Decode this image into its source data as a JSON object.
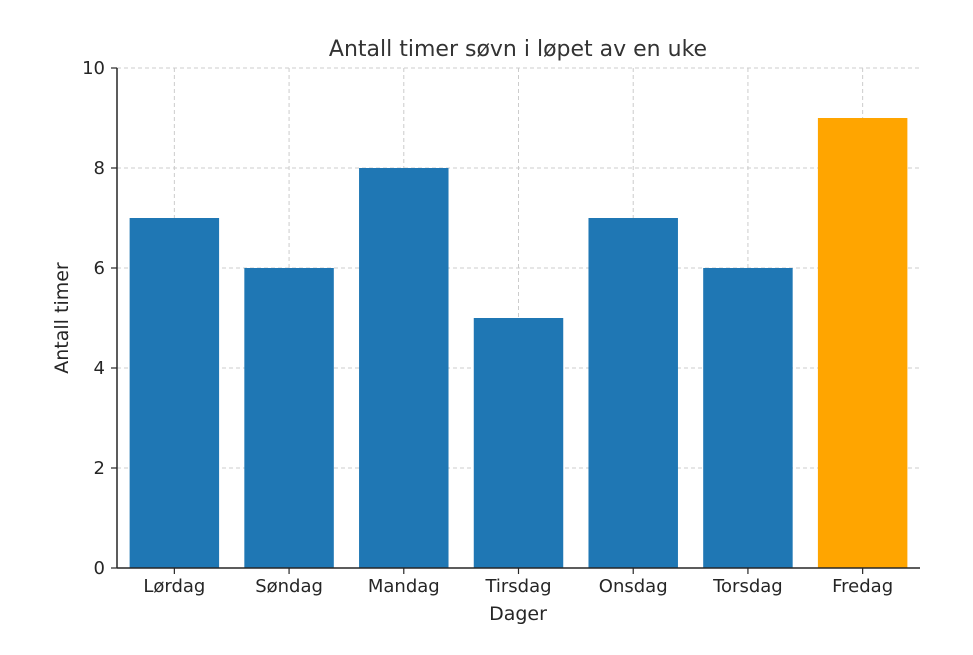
{
  "chart_data": {
    "type": "bar",
    "title": "Antall timer søvn i løpet av en uke",
    "xlabel": "Dager",
    "ylabel": "Antall timer",
    "categories": [
      "Lørdag",
      "Søndag",
      "Mandag",
      "Tirsdag",
      "Onsdag",
      "Torsdag",
      "Fredag"
    ],
    "values": [
      7,
      6,
      8,
      5,
      7,
      6,
      9
    ],
    "bar_colors": [
      "#1f77b4",
      "#1f77b4",
      "#1f77b4",
      "#1f77b4",
      "#1f77b4",
      "#1f77b4",
      "#ffa500"
    ],
    "ylim": [
      0,
      10
    ],
    "yticks": [
      0,
      2,
      4,
      6,
      8,
      10
    ],
    "grid": true,
    "legend": "none"
  }
}
